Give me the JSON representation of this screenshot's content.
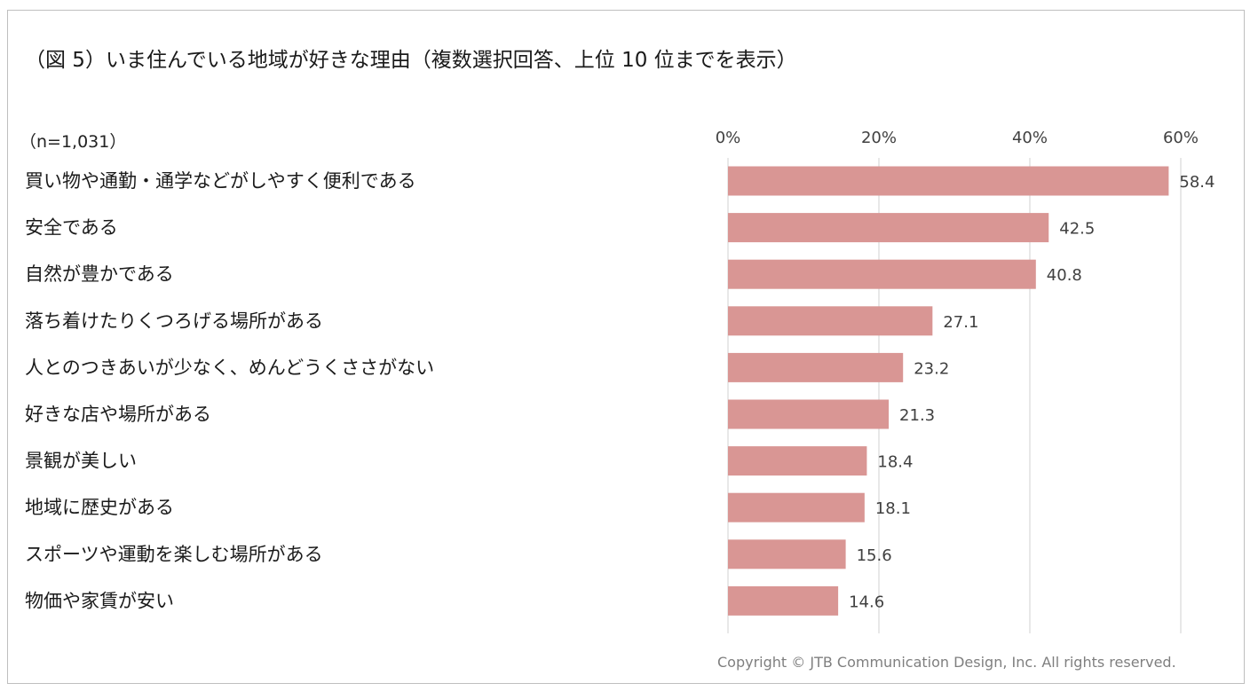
{
  "title": "（図 5）いま住んでいる地域が好きな理由（複数選択回答、上位 10 位までを表示）",
  "sample_size": "（n=1,031）",
  "copyright": "Copyright © JTB Communication Design, Inc. All rights reserved.",
  "chart_data": {
    "type": "bar",
    "orientation": "horizontal",
    "title": "（図 5）いま住んでいる地域が好きな理由（複数選択回答、上位 10 位までを表示）",
    "categories": [
      "買い物や通勤・通学などがしやすく便利である",
      "安全である",
      "自然が豊かである",
      "落ち着けたりくつろげる場所がある",
      "人とのつきあいが少なく、めんどうくささがない",
      "好きな店や場所がある",
      "景観が美しい",
      "地域に歴史がある",
      "スポーツや運動を楽しむ場所がある",
      "物価や家賃が安い"
    ],
    "values": [
      58.4,
      42.5,
      40.8,
      27.1,
      23.2,
      21.3,
      18.4,
      18.1,
      15.6,
      14.6
    ],
    "value_labels": [
      "58.4",
      "42.5",
      "40.8",
      "27.1",
      "23.2",
      "21.3",
      "18.4",
      "18.1",
      "15.6",
      "14.6"
    ],
    "xlim": [
      0,
      60
    ],
    "ticks": [
      0,
      20,
      40,
      60
    ],
    "tick_labels": [
      "0%",
      "20%",
      "40%",
      "60%"
    ],
    "axis_position": "top",
    "grid": true,
    "bar_color": "#d99694",
    "grid_color": "#d9d9d9"
  }
}
